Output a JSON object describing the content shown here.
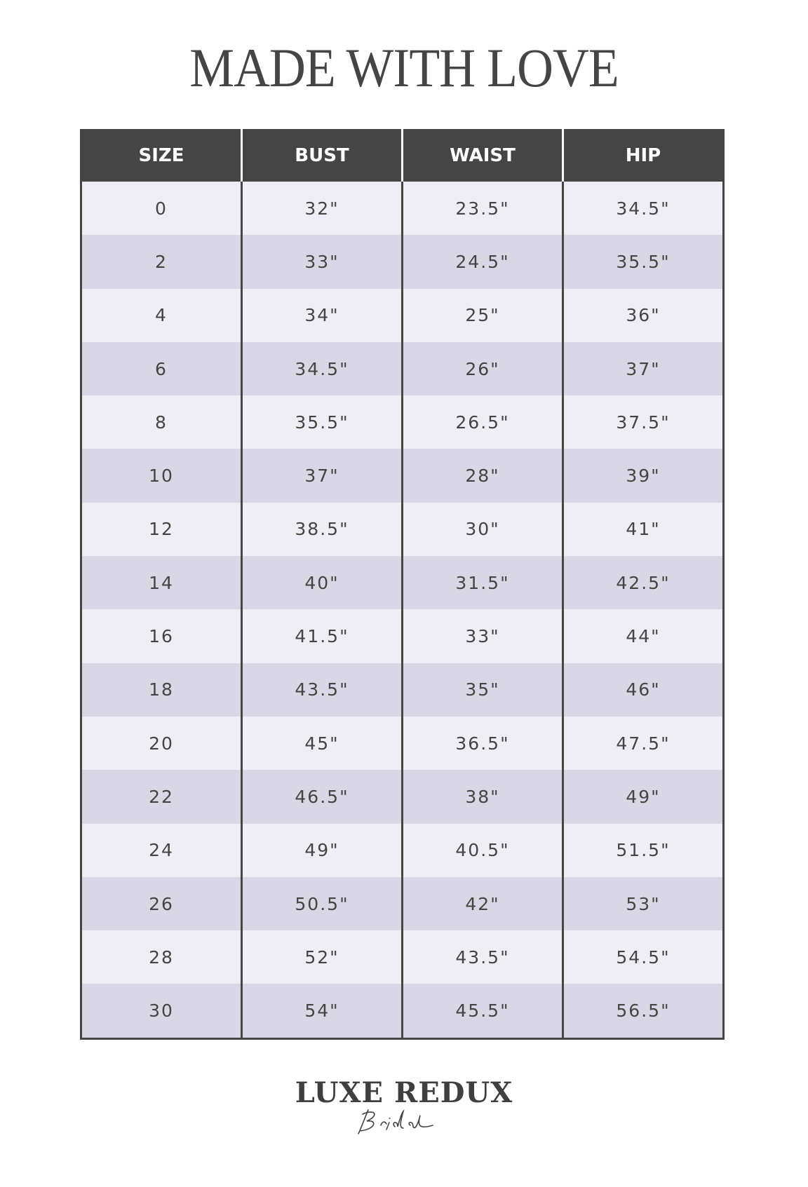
{
  "title": "MADE WITH LOVE",
  "table": {
    "headers": [
      "SIZE",
      "BUST",
      "WAIST",
      "HIP"
    ],
    "rows": [
      [
        "0",
        "32\"",
        "23.5\"",
        "34.5\""
      ],
      [
        "2",
        "33\"",
        "24.5\"",
        "35.5\""
      ],
      [
        "4",
        "34\"",
        "25\"",
        "36\""
      ],
      [
        "6",
        "34.5\"",
        "26\"",
        "37\""
      ],
      [
        "8",
        "35.5\"",
        "26.5\"",
        "37.5\""
      ],
      [
        "10",
        "37\"",
        "28\"",
        "39\""
      ],
      [
        "12",
        "38.5\"",
        "30\"",
        "41\""
      ],
      [
        "14",
        "40\"",
        "31.5\"",
        "42.5\""
      ],
      [
        "16",
        "41.5\"",
        "33\"",
        "44\""
      ],
      [
        "18",
        "43.5\"",
        "35\"",
        "46\""
      ],
      [
        "20",
        "45\"",
        "36.5\"",
        "47.5\""
      ],
      [
        "22",
        "46.5\"",
        "38\"",
        "49\""
      ],
      [
        "24",
        "49\"",
        "40.5\"",
        "51.5\""
      ],
      [
        "26",
        "50.5\"",
        "42\"",
        "53\""
      ],
      [
        "28",
        "52\"",
        "43.5\"",
        "54.5\""
      ],
      [
        "30",
        "54\"",
        "45.5\"",
        "56.5\""
      ]
    ]
  },
  "logo": {
    "main": "LUXE REDUX",
    "script": "Bridal"
  },
  "colors": {
    "header": "#454545",
    "row_light": "#efeef6",
    "row_dark": "#d9d7e6",
    "text": "#444444"
  }
}
